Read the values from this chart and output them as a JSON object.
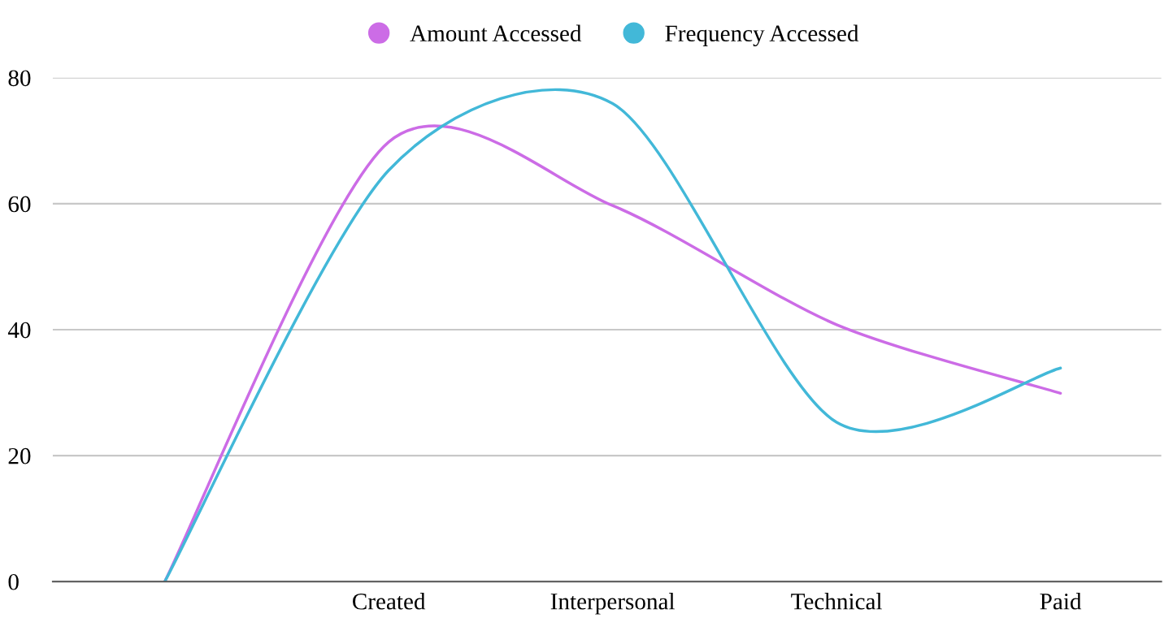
{
  "chart_data": {
    "type": "line",
    "categories": [
      null,
      "Created",
      "Interpersonal",
      "Technical",
      "Paid"
    ],
    "series": [
      {
        "name": "Amount Accessed",
        "color": "#cc6ce6",
        "values": [
          0,
          69.8,
          59.7,
          40.8,
          29.9
        ]
      },
      {
        "name": "Frequency Accessed",
        "color": "#42b8d8",
        "values": [
          0,
          65.3,
          75.9,
          25.3,
          33.9
        ]
      }
    ],
    "ylim": [
      0,
      80
    ],
    "yticks": [
      0,
      20,
      40,
      60,
      80
    ],
    "grid": "y",
    "legend": "top",
    "marker": "none",
    "line_style": "solid"
  }
}
